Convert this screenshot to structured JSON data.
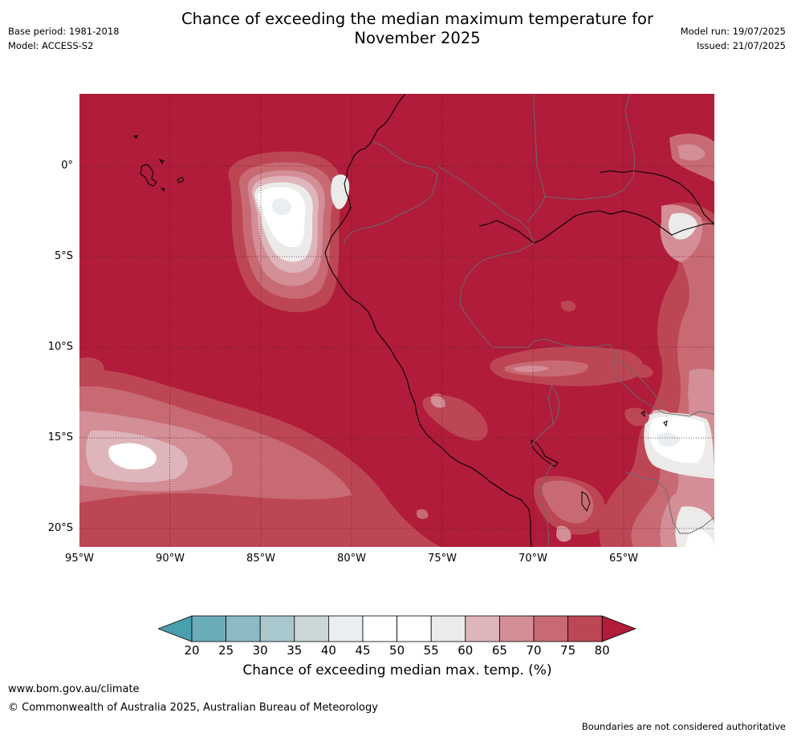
{
  "title_lines": [
    "Chance of exceeding the median maximum temperature for",
    "November 2025"
  ],
  "meta_left": [
    "Base period: 1981-2018",
    "Model: ACCESS-S2"
  ],
  "meta_right": [
    "Model run: 19/07/2025",
    "Issued: 21/07/2025"
  ],
  "map": {
    "lon_range": [
      -95,
      -60
    ],
    "lat_range": [
      -21,
      4
    ],
    "lat_ticks": [
      {
        "value": 0,
        "label": "0°"
      },
      {
        "value": -5,
        "label": "5°S"
      },
      {
        "value": -10,
        "label": "10°S"
      },
      {
        "value": -15,
        "label": "15°S"
      },
      {
        "value": -20,
        "label": "20°S"
      }
    ],
    "lon_ticks": [
      {
        "value": -95,
        "label": "95°W"
      },
      {
        "value": -90,
        "label": "90°W"
      },
      {
        "value": -85,
        "label": "85°W"
      },
      {
        "value": -80,
        "label": "80°W"
      },
      {
        "value": -75,
        "label": "75°W"
      },
      {
        "value": -70,
        "label": "70°W"
      },
      {
        "value": -65,
        "label": "65°W"
      }
    ]
  },
  "colorbar": {
    "label": "Chance of exceeding median max. temp. (%)",
    "ticks": [
      "20",
      "25",
      "30",
      "35",
      "40",
      "45",
      "50",
      "55",
      "60",
      "65",
      "70",
      "75",
      "80"
    ],
    "colors": [
      "#4a9fae",
      "#6aacb9",
      "#8bbac5",
      "#a9c8cd",
      "#cbd6d9",
      "#e9eff1",
      "#ffffff",
      "#ffffff",
      "#ecebea",
      "#deb5ba",
      "#d38e96",
      "#c86a74",
      "#bd4655",
      "#b01c3a"
    ]
  },
  "footer": {
    "url": "www.bom.gov.au/climate",
    "copyright": "© Commonwealth of Australia 2025, Australian Bureau of Meteorology",
    "boundaries": "Boundaries are not considered authoritative"
  }
}
